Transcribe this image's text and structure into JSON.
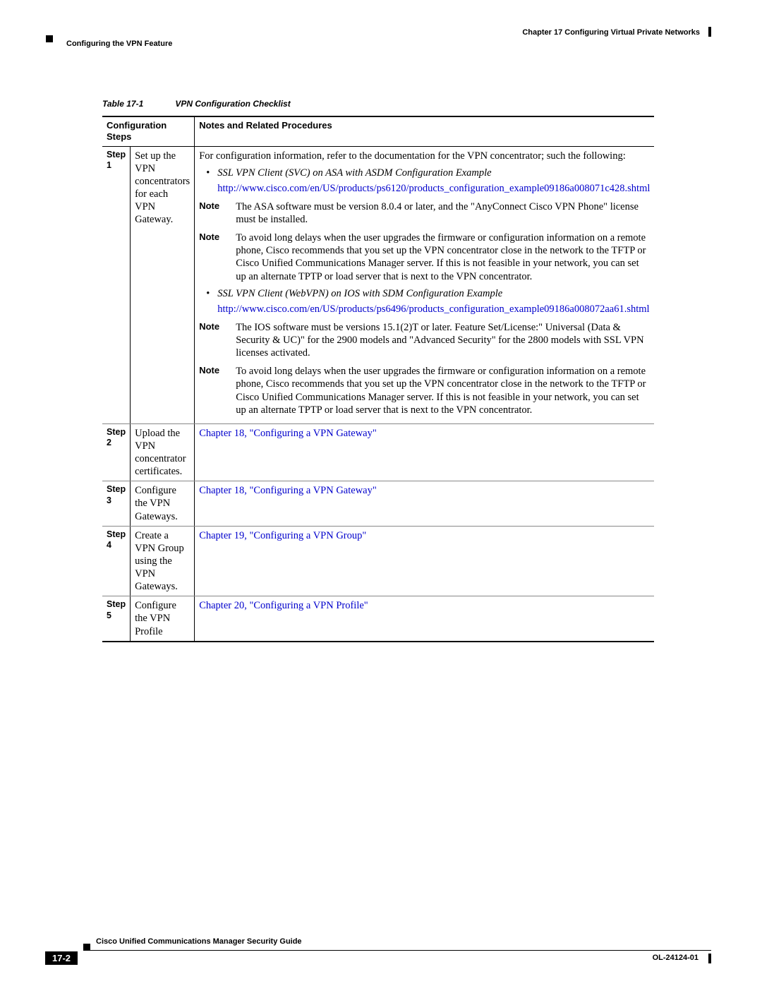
{
  "header": {
    "chapter": "Chapter 17    Configuring Virtual Private Networks",
    "section": "Configuring the VPN Feature"
  },
  "table": {
    "caption_label": "Table 17-1",
    "caption_title": "VPN Configuration Checklist",
    "col1": "Configuration Steps",
    "col2": "Notes and Related Procedures",
    "rows": {
      "r1": {
        "step": "Step 1",
        "config": "Set up the VPN concentrators for each VPN Gateway.",
        "intro": "For configuration information, refer to the documentation for the VPN concentrator; such the following:",
        "bullet1": "SSL VPN Client (SVC) on ASA with ASDM Configuration Example",
        "url1": "http://www.cisco.com/en/US/products/ps6120/products_configuration_example09186a008071c428.shtml",
        "note1": "The ASA software must be version 8.0.4 or later, and the \"AnyConnect Cisco VPN Phone\" license must be installed.",
        "note2": "To avoid long delays when the user upgrades the firmware or configuration information on a remote phone, Cisco recommends that you set up the VPN concentrator close in the network to the TFTP or Cisco Unified Communications Manager server. If this is not feasible in your network, you can set up an alternate TPTP or load server that is next to the VPN concentrator.",
        "bullet2": "SSL VPN Client (WebVPN) on IOS with SDM Configuration Example",
        "url2": "http://www.cisco.com/en/US/products/ps6496/products_configuration_example09186a008072aa61.shtml",
        "note3": "The IOS software must be versions 15.1(2)T or later. Feature Set/License:\" Universal (Data & Security & UC)\" for the 2900 models and \"Advanced Security\" for the 2800 models with SSL VPN licenses activated.",
        "note4": "To avoid long delays when the user upgrades the firmware or configuration information on a remote phone, Cisco recommends that you set up the VPN concentrator close in the network to the TFTP or Cisco Unified Communications Manager server. If this is not feasible in your network, you can set up an alternate TPTP or load server that is next to the VPN concentrator."
      },
      "r2": {
        "step": "Step 2",
        "config": "Upload the VPN concentrator certificates.",
        "notes": "Chapter 18, \"Configuring a VPN Gateway\""
      },
      "r3": {
        "step": "Step 3",
        "config": "Configure the VPN Gateways.",
        "notes": "Chapter 18, \"Configuring a VPN Gateway\""
      },
      "r4": {
        "step": "Step 4",
        "config": "Create a VPN Group using the VPN Gateways.",
        "notes": "Chapter 19, \"Configuring a VPN Group\""
      },
      "r5": {
        "step": "Step 5",
        "config": "Configure the VPN Profile",
        "notes": "Chapter 20, \"Configuring a VPN Profile\""
      }
    },
    "note_label": "Note"
  },
  "footer": {
    "title": "Cisco Unified Communications Manager Security Guide",
    "page": "17-2",
    "doc_id": "OL-24124-01"
  }
}
